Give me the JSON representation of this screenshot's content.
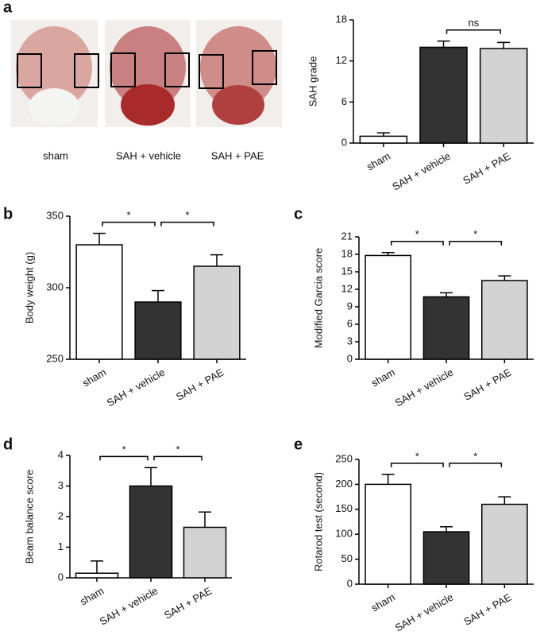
{
  "panel_a_images": {
    "label": "a",
    "captions": [
      "sham",
      "SAH + vehicle",
      "SAH + PAE"
    ]
  },
  "chart_data": [
    {
      "type": "bar",
      "y_label": "SAH grade",
      "categories": [
        "sham",
        "SAH + vehicle",
        "SAH + PAE"
      ],
      "values": [
        1,
        14,
        13.8
      ],
      "errors": [
        0.5,
        0.9,
        0.9
      ],
      "colors": [
        "#ffffff",
        "#333333",
        "#d3d3d3"
      ],
      "ylim": [
        0,
        18
      ],
      "yticks": [
        0,
        6,
        12,
        18
      ],
      "comparisons": [
        {
          "pair": [
            1,
            2
          ],
          "label": "ns"
        }
      ]
    },
    {
      "type": "bar",
      "label": "b",
      "y_label": "Body weight (g)",
      "categories": [
        "sham",
        "SAH + vehicle",
        "SAH + PAE"
      ],
      "values": [
        330,
        290,
        315
      ],
      "errors": [
        8,
        8,
        8
      ],
      "colors": [
        "#ffffff",
        "#333333",
        "#d3d3d3"
      ],
      "ylim": [
        250,
        350
      ],
      "yticks": [
        250,
        300,
        350
      ],
      "comparisons": [
        {
          "pair": [
            0,
            1
          ],
          "label": "*"
        },
        {
          "pair": [
            1,
            2
          ],
          "label": "*"
        }
      ]
    },
    {
      "type": "bar",
      "label": "c",
      "y_label": "Modified Garcia score",
      "categories": [
        "sham",
        "SAH + vehicle",
        "SAH + PAE"
      ],
      "values": [
        17.8,
        10.7,
        13.5
      ],
      "errors": [
        0.5,
        0.7,
        0.8
      ],
      "colors": [
        "#ffffff",
        "#333333",
        "#d3d3d3"
      ],
      "ylim": [
        0,
        21
      ],
      "yticks": [
        0,
        3,
        6,
        9,
        12,
        15,
        18,
        21
      ],
      "comparisons": [
        {
          "pair": [
            0,
            1
          ],
          "label": "*"
        },
        {
          "pair": [
            1,
            2
          ],
          "label": "*"
        }
      ]
    },
    {
      "type": "bar",
      "label": "d",
      "y_label": "Beam balance score",
      "categories": [
        "sham",
        "SAH + vehicle",
        "SAH + PAE"
      ],
      "values": [
        0.15,
        3,
        1.65
      ],
      "errors": [
        0.4,
        0.6,
        0.5
      ],
      "colors": [
        "#ffffff",
        "#333333",
        "#d3d3d3"
      ],
      "ylim": [
        0,
        4
      ],
      "yticks": [
        0,
        1,
        2,
        3,
        4
      ],
      "comparisons": [
        {
          "pair": [
            0,
            1
          ],
          "label": "*"
        },
        {
          "pair": [
            1,
            2
          ],
          "label": "*"
        }
      ]
    },
    {
      "type": "bar",
      "label": "e",
      "y_label": "Rotarod test (second)",
      "categories": [
        "sham",
        "SAH + vehicle",
        "SAH + PAE"
      ],
      "values": [
        200,
        105,
        160
      ],
      "errors": [
        20,
        10,
        15
      ],
      "colors": [
        "#ffffff",
        "#333333",
        "#d3d3d3"
      ],
      "ylim": [
        0,
        250
      ],
      "yticks": [
        0,
        50,
        100,
        150,
        200,
        250
      ],
      "comparisons": [
        {
          "pair": [
            0,
            1
          ],
          "label": "*"
        },
        {
          "pair": [
            1,
            2
          ],
          "label": "*"
        }
      ]
    }
  ]
}
